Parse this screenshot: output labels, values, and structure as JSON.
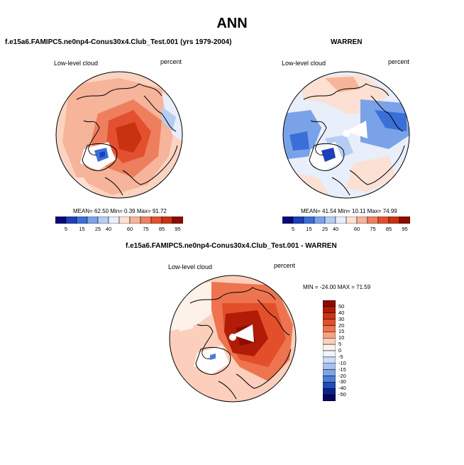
{
  "title": "ANN",
  "panels": [
    {
      "title": "f.e15a6.FAMIPC5.ne0np4-Conus30x4.Club_Test.001 (yrs 1979-2004)",
      "variable": "Low-level cloud",
      "units": "percent",
      "stats": "MEAN=  62.50  Min=   0.39  Max=  91.72",
      "colorbar_labels": [
        "5",
        "15",
        "25",
        "40",
        "60",
        "75",
        "85",
        "95"
      ]
    },
    {
      "title": "WARREN",
      "variable": "Low-level cloud",
      "units": "percent",
      "stats": "MEAN=  41.54  Min=  10.11  Max=  74.99",
      "colorbar_labels": [
        "5",
        "15",
        "25",
        "40",
        "60",
        "75",
        "85",
        "95"
      ]
    },
    {
      "title": "f.e15a6.FAMIPC5.ne0np4-Conus30x4.Club_Test.001 - WARREN",
      "variable": "Low-level cloud",
      "units": "percent",
      "stats": "MIN = -24.00 MAX =  71.59",
      "colorbar_labels": [
        "50",
        "40",
        "30",
        "20",
        "15",
        "10",
        "5",
        "0",
        "-5",
        "-10",
        "-15",
        "-20",
        "-30",
        "-40",
        "-50"
      ]
    }
  ],
  "colors": {
    "abs_scale": [
      "#08087a",
      "#1d3fb8",
      "#3a6fd8",
      "#7aa2e8",
      "#b5cdf2",
      "#e8eefa",
      "#fbe0d3",
      "#f6b49a",
      "#ee7f5e",
      "#e3502f",
      "#c93210",
      "#8b0c00"
    ],
    "diff_scale": [
      "#8b0c00",
      "#b01c06",
      "#cc3512",
      "#e24f2a",
      "#ee744f",
      "#f6a283",
      "#fbcfbb",
      "#fdf1ea",
      "#eef3fd",
      "#cddcf6",
      "#a8c2ef",
      "#7ea3e6",
      "#4e7cd7",
      "#1f4cb5",
      "#0b2388",
      "#06075c"
    ]
  }
}
